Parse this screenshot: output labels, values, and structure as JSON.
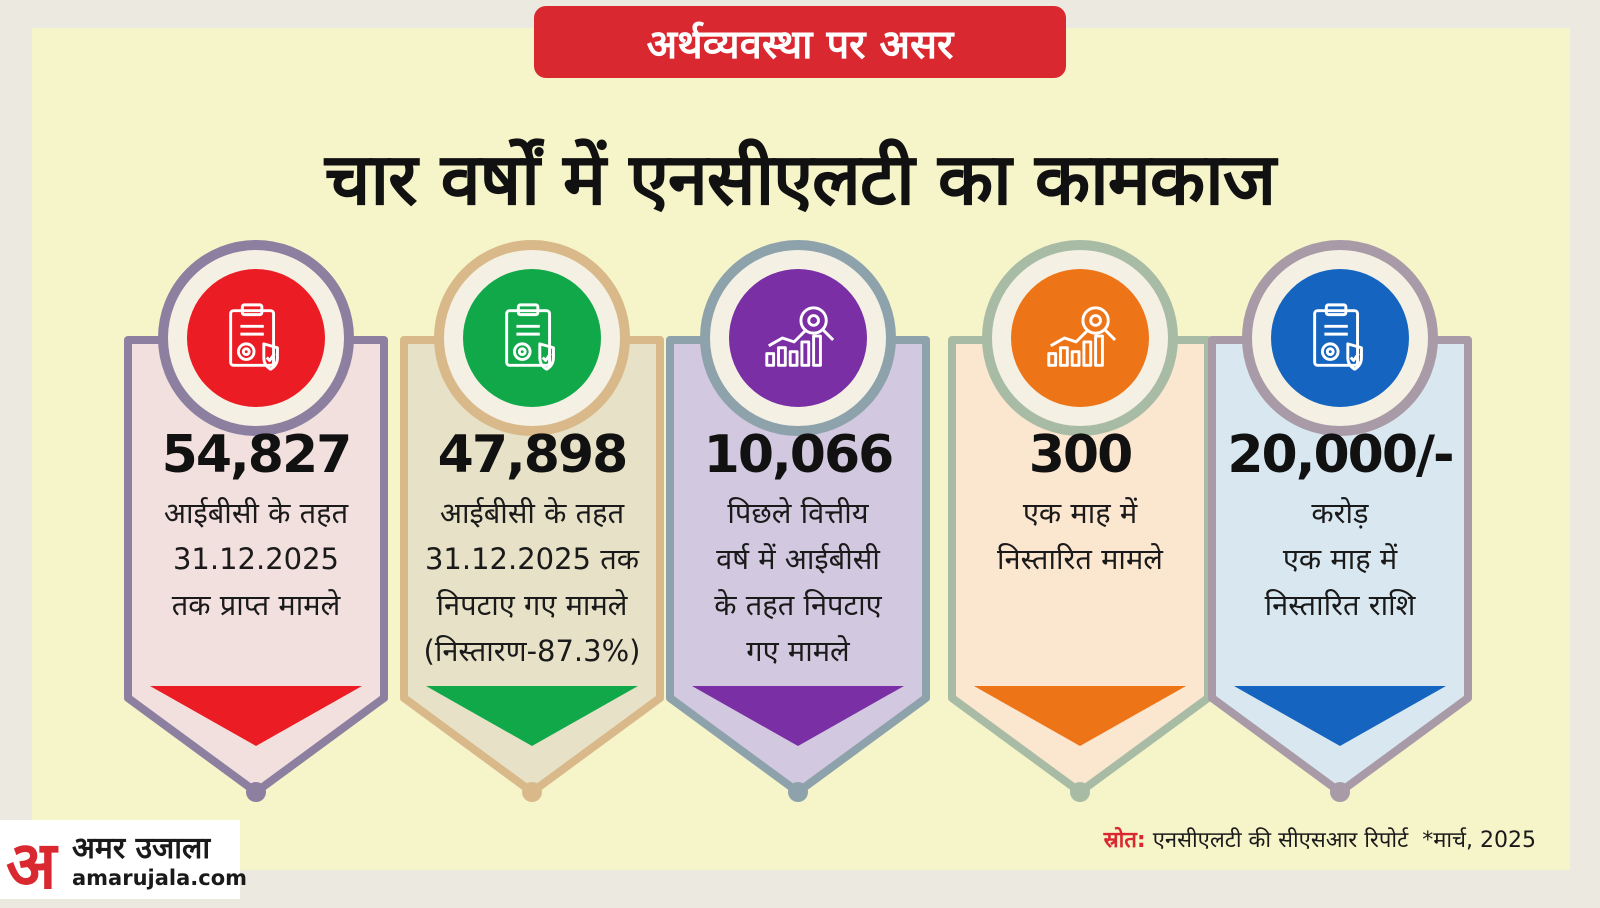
{
  "kicker": "अर्थव्यवस्था पर असर",
  "headline": "चार वर्षों में एनसीएलटी का कामकाज",
  "cards": [
    {
      "value": "54,827",
      "lines": [
        "आईबीसी के तहत",
        "31.12.2025",
        "तक प्राप्त मामले"
      ],
      "icon": "clipboard-gear-icon",
      "accent": "#ec1c24",
      "ring": "#8c7fa0",
      "fill": "#f2e0df"
    },
    {
      "value": "47,898",
      "lines": [
        "आईबीसी के तहत",
        "31.12.2025 तक",
        "निपटाए गए मामले",
        "(निस्तारण-87.3%)"
      ],
      "icon": "clipboard-gear-icon",
      "accent": "#11a84a",
      "ring": "#d9b98a",
      "fill": "#e6e1c7"
    },
    {
      "value": "10,066",
      "lines": [
        "पिछले वित्तीय",
        "वर्ष में आईबीसी",
        "के तहत निपटाए",
        "गए मामले"
      ],
      "icon": "chart-magnifier-icon",
      "accent": "#7a2fa4",
      "ring": "#8ea2ac",
      "fill": "#d2c8df"
    },
    {
      "value": "300",
      "lines": [
        "एक माह में",
        "निस्तारित मामले"
      ],
      "icon": "chart-magnifier-icon",
      "accent": "#ee7418",
      "ring": "#a8bba5",
      "fill": "#fbe6cf"
    },
    {
      "value": "20,000/-",
      "lines": [
        "करोड़",
        "एक माह में",
        "निस्तारित राशि"
      ],
      "icon": "clipboard-gear-icon",
      "accent": "#1565c0",
      "ring": "#a89aa6",
      "fill": "#d8e7f0"
    }
  ],
  "logo": {
    "mark": "अ",
    "name": "अमर उजाला",
    "url": "amarujala.com"
  },
  "source": {
    "label": "स्रोत:",
    "text": "एनसीएलटी की सीएसआर रिपोर्ट",
    "note": "*मार्च, 2025"
  }
}
